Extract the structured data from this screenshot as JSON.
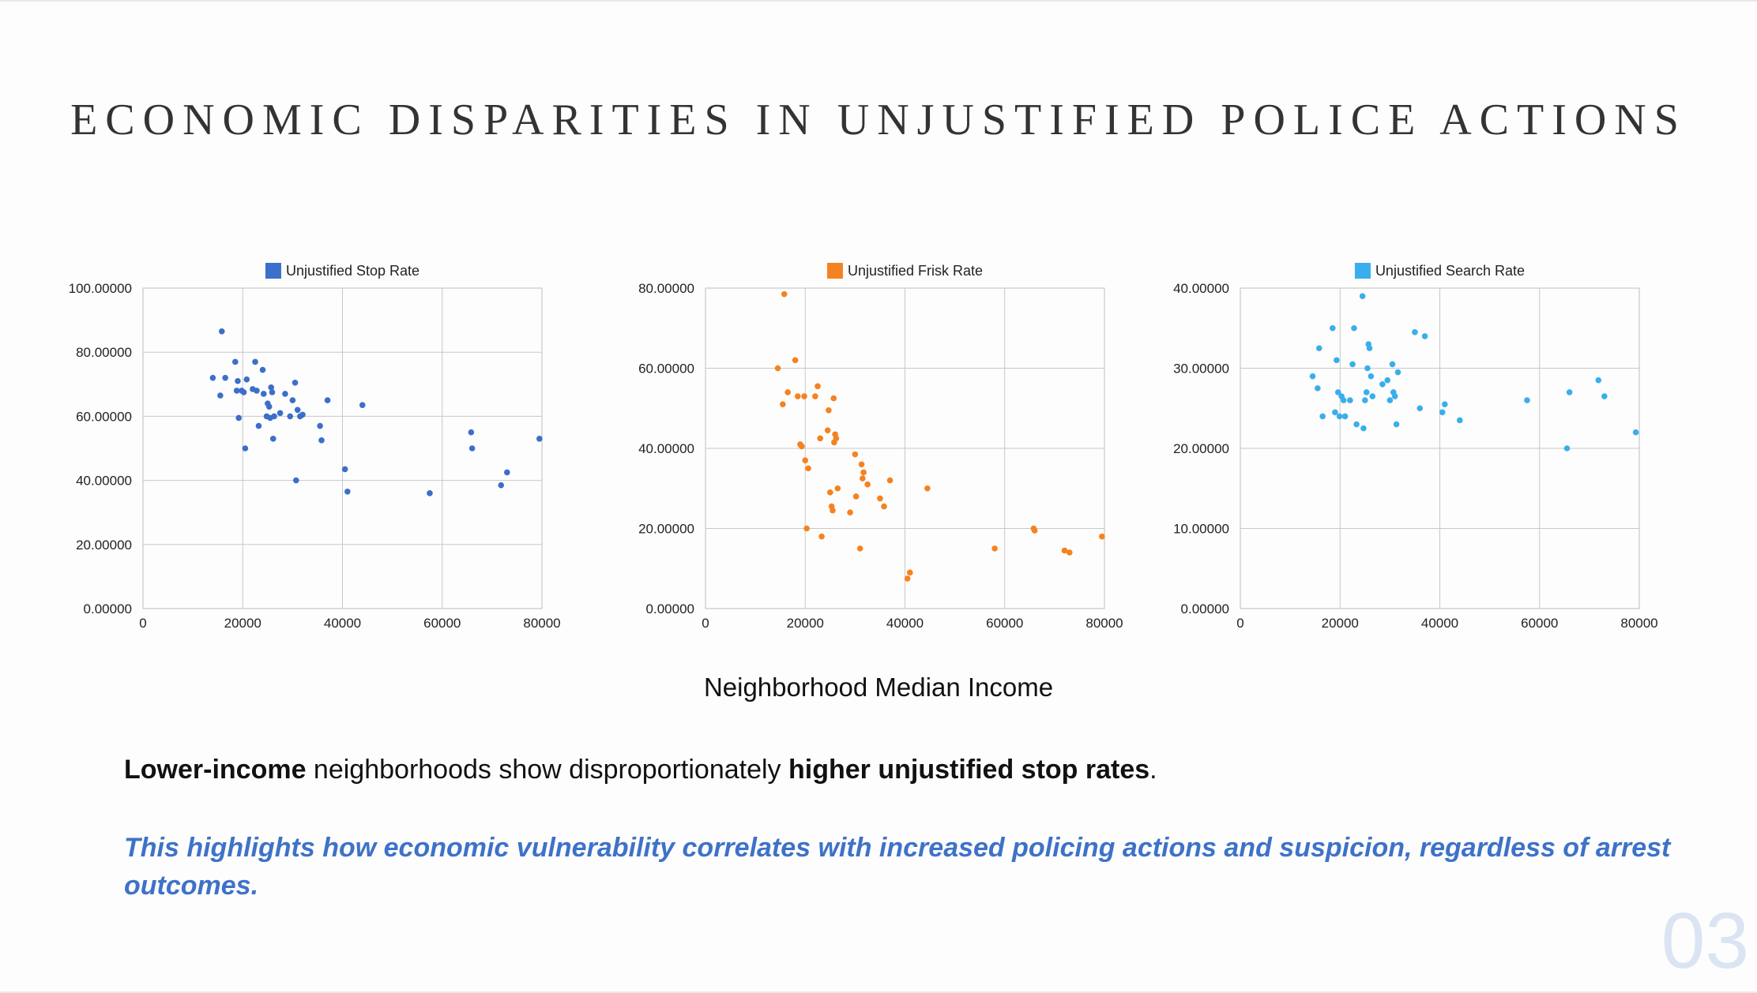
{
  "slide": {
    "title": "ECONOMIC DISPARITIES IN UNJUSTIFIED POLICE ACTIONS",
    "shared_xlabel": "Neighborhood Median Income",
    "statement": {
      "part1": "Lower-income",
      "part2": " neighborhoods show disproportionately ",
      "part3": "higher unjustified stop rates",
      "part4": "."
    },
    "highlight": "This highlights how economic vulnerability correlates with increased policing actions and suspicion, regardless of arrest outcomes.",
    "page_number": "03"
  },
  "chart_data": [
    {
      "type": "scatter",
      "series": [
        {
          "name": "Unjustified Stop Rate",
          "color": "#3b6fc9",
          "points": [
            [
              14000,
              72
            ],
            [
              15500,
              66.5
            ],
            [
              15800,
              86.5
            ],
            [
              16500,
              72
            ],
            [
              18500,
              77
            ],
            [
              18800,
              68
            ],
            [
              19000,
              71
            ],
            [
              19200,
              59.5
            ],
            [
              19800,
              68
            ],
            [
              20200,
              67.5
            ],
            [
              20500,
              50
            ],
            [
              20800,
              71.5
            ],
            [
              22000,
              68.5
            ],
            [
              22500,
              77
            ],
            [
              22800,
              68
            ],
            [
              23200,
              57
            ],
            [
              24000,
              74.5
            ],
            [
              24200,
              67
            ],
            [
              24800,
              60
            ],
            [
              25000,
              64
            ],
            [
              25300,
              63
            ],
            [
              25500,
              59.5
            ],
            [
              25700,
              69
            ],
            [
              25900,
              67.5
            ],
            [
              26100,
              53
            ],
            [
              26300,
              60
            ],
            [
              27500,
              61
            ],
            [
              28500,
              67
            ],
            [
              29500,
              60
            ],
            [
              30000,
              65
            ],
            [
              30500,
              70.5
            ],
            [
              30700,
              40
            ],
            [
              31000,
              62
            ],
            [
              31500,
              60
            ],
            [
              32000,
              60.5
            ],
            [
              35500,
              57
            ],
            [
              35800,
              52.5
            ],
            [
              37000,
              65
            ],
            [
              40500,
              43.5
            ],
            [
              41000,
              36.5
            ],
            [
              44000,
              63.5
            ],
            [
              57500,
              36
            ],
            [
              65800,
              55
            ],
            [
              66000,
              50
            ],
            [
              71800,
              38.5
            ],
            [
              73000,
              42.5
            ],
            [
              79500,
              53
            ]
          ]
        }
      ],
      "xlim": [
        0,
        80000
      ],
      "ylim": [
        0,
        100
      ],
      "xticks": [
        "0",
        "20000",
        "40000",
        "60000",
        "80000"
      ],
      "yticks": [
        "0.00000",
        "20.00000",
        "40.00000",
        "60.00000",
        "80.00000",
        "100.00000"
      ],
      "grid": true,
      "legend": "top"
    },
    {
      "type": "scatter",
      "series": [
        {
          "name": "Unjustified Frisk Rate",
          "color": "#f58220",
          "points": [
            [
              14500,
              60
            ],
            [
              15500,
              51
            ],
            [
              15800,
              78.5
            ],
            [
              16500,
              54
            ],
            [
              18000,
              62
            ],
            [
              18500,
              53
            ],
            [
              19000,
              41
            ],
            [
              19300,
              40.5
            ],
            [
              19800,
              53
            ],
            [
              20000,
              37
            ],
            [
              20300,
              20
            ],
            [
              20600,
              35
            ],
            [
              22000,
              53
            ],
            [
              22500,
              55.5
            ],
            [
              23000,
              42.5
            ],
            [
              23300,
              18
            ],
            [
              24500,
              44.5
            ],
            [
              24700,
              49.5
            ],
            [
              25000,
              29
            ],
            [
              25300,
              25.5
            ],
            [
              25500,
              24.5
            ],
            [
              25700,
              52.5
            ],
            [
              25800,
              41.5
            ],
            [
              26000,
              43.5
            ],
            [
              26200,
              42.5
            ],
            [
              26500,
              30
            ],
            [
              29000,
              24
            ],
            [
              30000,
              38.5
            ],
            [
              30200,
              28
            ],
            [
              31000,
              15
            ],
            [
              31300,
              36
            ],
            [
              31500,
              32.5
            ],
            [
              31700,
              34
            ],
            [
              32500,
              31
            ],
            [
              35000,
              27.5
            ],
            [
              35800,
              25.5
            ],
            [
              37000,
              32
            ],
            [
              40500,
              7.5
            ],
            [
              41000,
              9
            ],
            [
              44500,
              30
            ],
            [
              58000,
              15
            ],
            [
              65800,
              20
            ],
            [
              66000,
              19.5
            ],
            [
              72000,
              14.5
            ],
            [
              73000,
              14
            ],
            [
              79500,
              18
            ]
          ]
        }
      ],
      "xlim": [
        0,
        80000
      ],
      "ylim": [
        0,
        80
      ],
      "xticks": [
        "0",
        "20000",
        "40000",
        "60000",
        "80000"
      ],
      "yticks": [
        "0.00000",
        "20.00000",
        "40.00000",
        "60.00000",
        "80.00000"
      ],
      "grid": true,
      "legend": "top"
    },
    {
      "type": "scatter",
      "series": [
        {
          "name": "Unjustified Search Rate",
          "color": "#3aaeec",
          "points": [
            [
              14500,
              29
            ],
            [
              15500,
              27.5
            ],
            [
              15800,
              32.5
            ],
            [
              16500,
              24
            ],
            [
              18500,
              35
            ],
            [
              19000,
              24.5
            ],
            [
              19300,
              31
            ],
            [
              19600,
              27
            ],
            [
              19900,
              24
            ],
            [
              20300,
              26.5
            ],
            [
              20700,
              26
            ],
            [
              21000,
              24
            ],
            [
              22000,
              26
            ],
            [
              22500,
              30.5
            ],
            [
              22800,
              35
            ],
            [
              23300,
              23
            ],
            [
              24500,
              39
            ],
            [
              24700,
              22.5
            ],
            [
              25000,
              26
            ],
            [
              25300,
              27
            ],
            [
              25500,
              30
            ],
            [
              25700,
              33
            ],
            [
              25900,
              32.5
            ],
            [
              26200,
              29
            ],
            [
              26500,
              26.5
            ],
            [
              28500,
              28
            ],
            [
              29500,
              28.5
            ],
            [
              30000,
              26
            ],
            [
              30500,
              30.5
            ],
            [
              30700,
              27
            ],
            [
              31000,
              26.5
            ],
            [
              31300,
              23
            ],
            [
              31600,
              29.5
            ],
            [
              35000,
              34.5
            ],
            [
              36000,
              25
            ],
            [
              37000,
              34
            ],
            [
              40500,
              24.5
            ],
            [
              41000,
              25.5
            ],
            [
              44000,
              23.5
            ],
            [
              57500,
              26
            ],
            [
              65500,
              20
            ],
            [
              66000,
              27
            ],
            [
              71800,
              28.5
            ],
            [
              73000,
              26.5
            ],
            [
              79300,
              22
            ]
          ]
        }
      ],
      "xlim": [
        0,
        80000
      ],
      "ylim": [
        0,
        40
      ],
      "xticks": [
        "0",
        "20000",
        "40000",
        "60000",
        "80000"
      ],
      "yticks": [
        "0.00000",
        "10.00000",
        "20.00000",
        "30.00000",
        "40.00000"
      ],
      "grid": true,
      "legend": "top"
    }
  ]
}
